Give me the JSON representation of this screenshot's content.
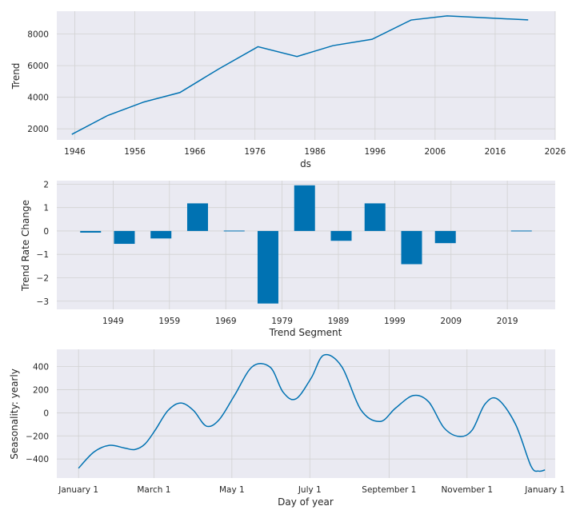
{
  "colors": {
    "series": "#0072b2",
    "plot_background": "#eaeaf2",
    "grid": "#d2d2d2"
  },
  "chart_data": [
    {
      "type": "line",
      "xlabel": "ds",
      "ylabel": "Trend",
      "grid": true,
      "x_ticks": [
        "1946",
        "1956",
        "1966",
        "1976",
        "1986",
        "1996",
        "2006",
        "2016",
        "2026"
      ],
      "y_ticks": [
        "2000",
        "4000",
        "6000",
        "8000"
      ],
      "xlim": [
        1943,
        2026
      ],
      "ylim": [
        1300,
        9450
      ],
      "series": [
        {
          "x": [
            1945.5,
            1951.5,
            1957.5,
            1963.5,
            1970,
            1976.5,
            1983,
            1989,
            1995.5,
            2002,
            2008,
            2015,
            2021.5
          ],
          "y": [
            1650,
            2850,
            3700,
            4300,
            5800,
            7200,
            6580,
            7270,
            7670,
            8890,
            9150,
            9020,
            8900
          ]
        }
      ]
    },
    {
      "type": "bar",
      "xlabel": "Trend Segment",
      "ylabel": "Trend Rate Change",
      "grid": true,
      "x_ticks": [
        "1949",
        "1959",
        "1969",
        "1979",
        "1989",
        "1999",
        "2009",
        "2019"
      ],
      "y_ticks": [
        "−3",
        "−2",
        "−1",
        "0",
        "1",
        "2"
      ],
      "xlim": [
        1939,
        2027.5
      ],
      "ylim": [
        -3.35,
        2.15
      ],
      "x": [
        1945,
        1951,
        1957.5,
        1964,
        1970.5,
        1976.5,
        1983,
        1989.5,
        1995.5,
        2002,
        2008,
        2021.5
      ],
      "values": [
        -0.07,
        -0.55,
        -0.32,
        1.18,
        0.02,
        -3.1,
        1.95,
        -0.42,
        1.18,
        -1.42,
        -0.52,
        0.01
      ]
    },
    {
      "type": "line",
      "xlabel": "Day of year",
      "ylabel": "Seasonality: yearly",
      "grid": true,
      "x_ticks": [
        "January 1",
        "March 1",
        "May 1",
        "July 1",
        "September 1",
        "November 1",
        "January 1"
      ],
      "x_tick_days": [
        0,
        59,
        120,
        181,
        243,
        304,
        365
      ],
      "y_ticks": [
        "−400",
        "−200",
        "0",
        "200",
        "400"
      ],
      "xlim": [
        -17,
        373
      ],
      "ylim": [
        -565,
        550
      ],
      "series": [
        {
          "x": [
            0,
            12,
            24,
            36,
            44,
            52,
            60,
            70,
            80,
            90,
            100,
            110,
            122,
            136,
            150,
            160,
            170,
            182,
            192,
            206,
            221,
            236,
            248,
            262,
            274,
            286,
            298,
            308,
            318,
            328,
            342,
            354,
            360,
            365
          ],
          "y": [
            -480,
            -340,
            -282,
            -305,
            -318,
            -270,
            -150,
            20,
            85,
            20,
            -115,
            -60,
            150,
            400,
            395,
            180,
            120,
            300,
            500,
            400,
            25,
            -75,
            40,
            150,
            95,
            -130,
            -205,
            -150,
            75,
            118,
            -100,
            -460,
            -505,
            -495
          ]
        }
      ]
    }
  ]
}
